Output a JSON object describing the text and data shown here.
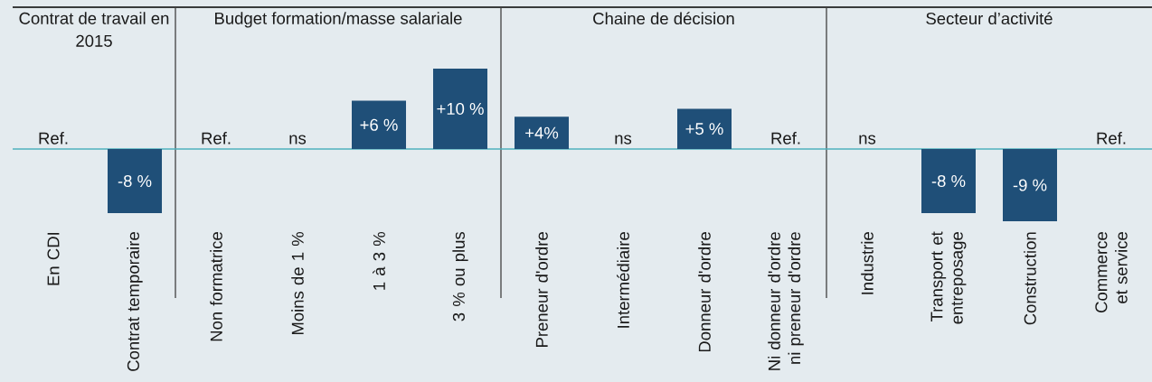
{
  "chart_data": [
    {
      "type": "bar",
      "title": "Contrat de travail en 2015",
      "categories": [
        "En CDI",
        "Contrat temporaire"
      ],
      "values": [
        0,
        -8
      ],
      "value_labels": [
        "Ref.",
        "-8 %"
      ],
      "color": "#1f4f78"
    },
    {
      "type": "bar",
      "title": "Budget formation/masse salariale",
      "categories": [
        "Non formatrice",
        "Moins de 1 %",
        "1 à 3 %",
        "3 % ou plus"
      ],
      "values": [
        0,
        0,
        6,
        10
      ],
      "value_labels": [
        "Ref.",
        "ns",
        "+6 %",
        "+10 %"
      ],
      "color": "#1f4f78"
    },
    {
      "type": "bar",
      "title": "Chaine de décision",
      "categories": [
        "Preneur d'ordre",
        "Intermédiaire",
        "Donneur d'ordre",
        "Ni donneur d'ordre ni preneur d'ordre"
      ],
      "values": [
        4,
        0,
        5,
        0
      ],
      "value_labels": [
        "+4%",
        "ns",
        "+5 %",
        "Ref."
      ],
      "color": "#1f4f78"
    },
    {
      "type": "bar",
      "title": "Secteur d’activité",
      "categories": [
        "Industrie",
        "Transport et entreposage",
        "Construction",
        "Commerce et service"
      ],
      "values": [
        0,
        -8,
        -9,
        0
      ],
      "value_labels": [
        "ns",
        "-8 %",
        "-9 %",
        "Ref."
      ],
      "color": "#1f4f78"
    }
  ]
}
